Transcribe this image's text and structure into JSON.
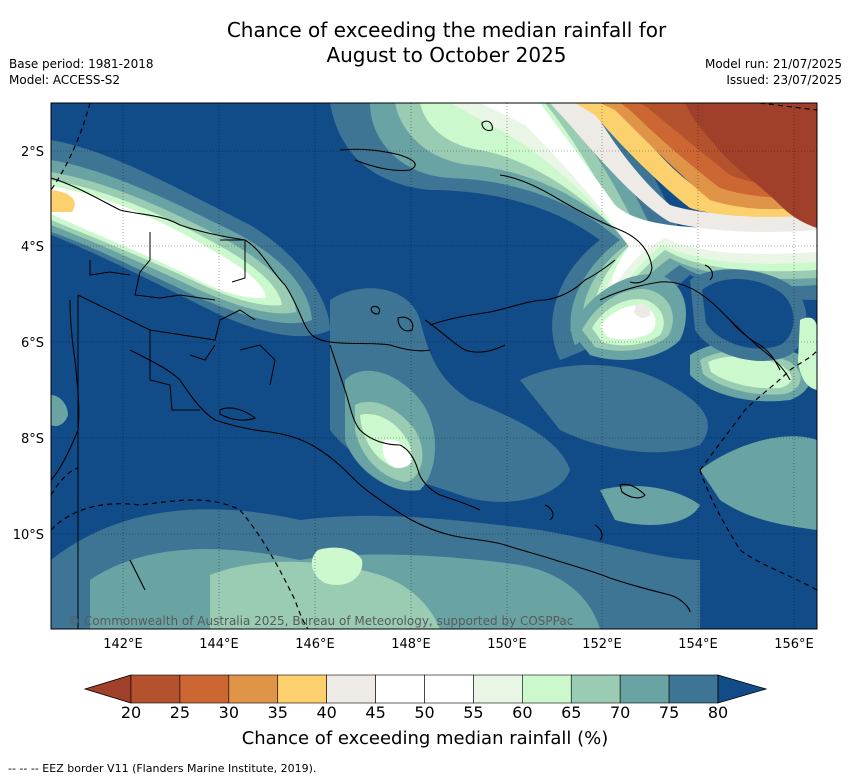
{
  "title_line1": "Chance of exceeding the median rainfall for",
  "title_line2": "August to October 2025",
  "base_period": "Base period: 1981-2018",
  "model": "Model: ACCESS-S2",
  "model_run": "Model run: 21/07/2025",
  "issued": "Issued: 23/07/2025",
  "copyright": "© Commonwealth of Australia 2025, Bureau of Meteorology, supported by COSPPac",
  "lat_labels": [
    "2°S",
    "4°S",
    "6°S",
    "8°S",
    "10°S"
  ],
  "lon_labels": [
    "142°E",
    "144°E",
    "146°E",
    "148°E",
    "150°E",
    "152°E",
    "154°E",
    "156°E"
  ],
  "colorbar": {
    "label": "Chance of exceeding median rainfall (%)",
    "ticks": [
      "20",
      "25",
      "30",
      "35",
      "40",
      "45",
      "50",
      "55",
      "60",
      "65",
      "70",
      "75",
      "80"
    ],
    "colors": [
      "#a0402a",
      "#b3522d",
      "#cc6633",
      "#e09448",
      "#fdd06e",
      "#eeebe6",
      "#ffffff",
      "#ffffff",
      "#e9f6e6",
      "#cbf8cc",
      "#99ccb3",
      "#6aa3a3",
      "#3e7595",
      "#124c88"
    ]
  },
  "footnote": "--  --  -- EEZ border V11 (Flanders Marine Institute, 2019)."
}
